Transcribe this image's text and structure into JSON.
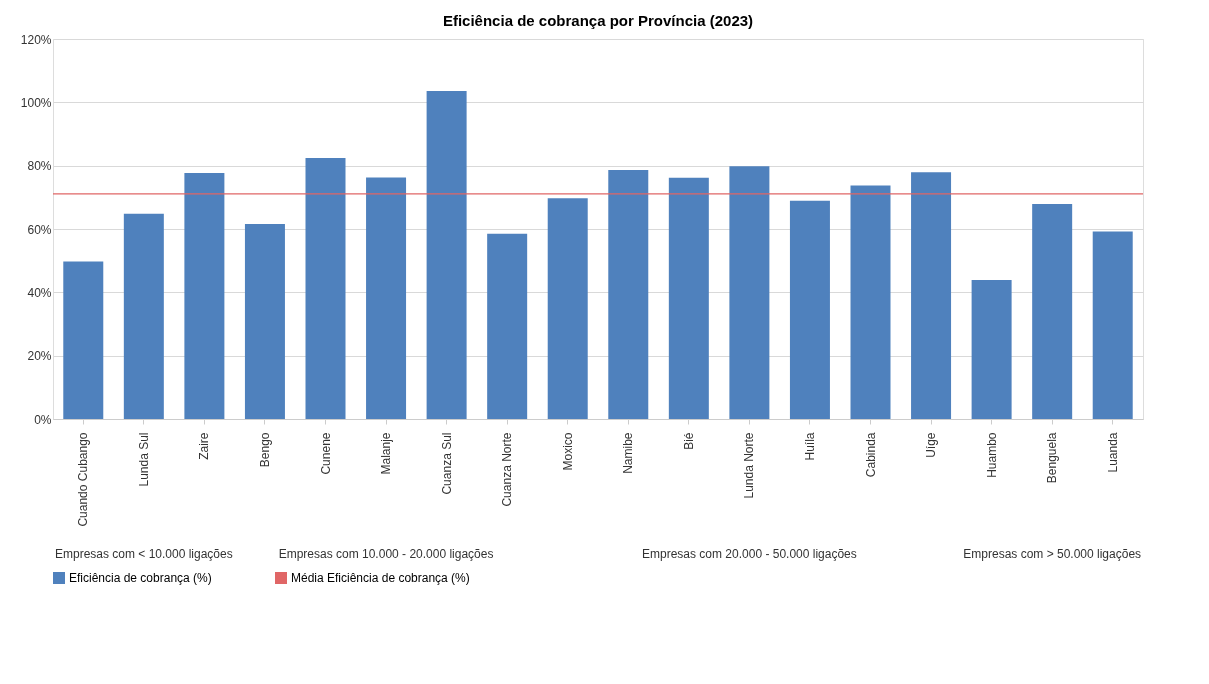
{
  "chart_data": {
    "type": "bar",
    "title": "Eficiência de cobrança por Província (2023)",
    "categories": [
      "Cuando Cubango",
      "Lunda Sul",
      "Zaire",
      "Bengo",
      "Cunene",
      "Malanje",
      "Cuanza Sul",
      "Cuanza Norte",
      "Moxico",
      "Namibe",
      "Bié",
      "Lunda Norte",
      "Huíla",
      "Cabinda",
      "Uíge",
      "Huambo",
      "Benguela",
      "Luanda"
    ],
    "series": [
      {
        "name": "Eficiência de cobrança (%)",
        "color": "#4f81bd",
        "values": [
          49.7,
          64.8,
          77.7,
          61.6,
          82.4,
          76.3,
          103.6,
          58.5,
          69.7,
          78.6,
          76.2,
          79.8,
          68.9,
          73.7,
          77.9,
          43.9,
          67.9,
          59.2
        ]
      }
    ],
    "ref_lines": [
      {
        "axis": "y",
        "value": 71.1,
        "label": "Média Eficiência de cobrança (%)",
        "color": "#e06666",
        "line_style": "solid"
      }
    ],
    "annotations": [
      "Empresas com < 10.000 ligações",
      "Empresas com 10.000 - 20.000 ligações",
      "Empresas com 20.000 - 50.000 ligações",
      "Empresas com > 50.000 ligações"
    ],
    "ylim": [
      0,
      120
    ],
    "yticks": [
      {
        "value": 0,
        "label": "0%"
      },
      {
        "value": 20,
        "label": "20%"
      },
      {
        "value": 40,
        "label": "40%"
      },
      {
        "value": 60,
        "label": "60%"
      },
      {
        "value": 80,
        "label": "80%"
      },
      {
        "value": 100,
        "label": "100%"
      },
      {
        "value": 120,
        "label": "120%"
      }
    ],
    "grid": "y",
    "legend": "bottom"
  }
}
